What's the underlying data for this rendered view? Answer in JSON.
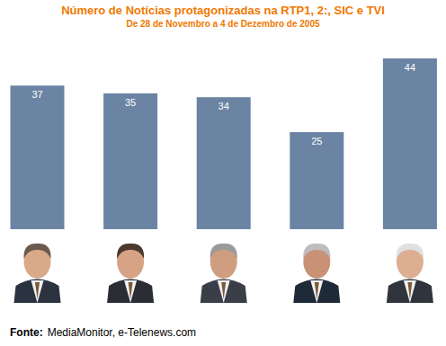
{
  "chart_data": {
    "type": "bar",
    "title": "Número de Notícias protagonizadas na RTP1, 2:, SIC e TVI",
    "subtitle": "De 28 de Novembro a 4 de Dezembro de 2005",
    "source": {
      "label": "Fonte:",
      "text": "MediaMonitor, e-Telenews.com"
    },
    "categories": [
      null,
      null,
      null,
      null,
      null
    ],
    "values": [
      37,
      35,
      34,
      25,
      44
    ],
    "color": "#6b84a3",
    "ylim": [
      0,
      44
    ],
    "data_labels": true,
    "tick_labels": false,
    "grid": false
  }
}
